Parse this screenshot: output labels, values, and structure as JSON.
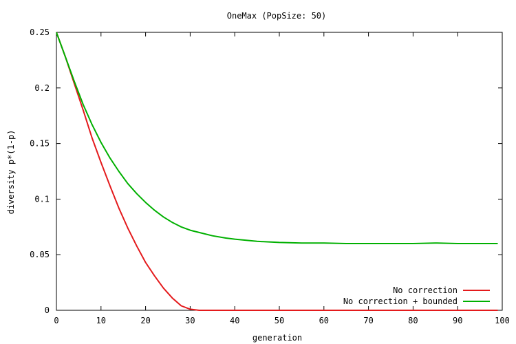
{
  "chart_data": {
    "type": "line",
    "title": "OneMax (PopSize: 50)",
    "xlabel": "generation",
    "ylabel": "diversity p*(1-p)",
    "xlim": [
      0,
      100
    ],
    "ylim": [
      0,
      0.25
    ],
    "xticks": [
      0,
      10,
      20,
      30,
      40,
      50,
      60,
      70,
      80,
      90,
      100
    ],
    "yticks": [
      0,
      0.05,
      0.1,
      0.15,
      0.2,
      0.25
    ],
    "xtick_labels": [
      "0",
      "10",
      "20",
      "30",
      "40",
      "50",
      "60",
      "70",
      "80",
      "90",
      "100"
    ],
    "ytick_labels": [
      "0",
      "0.05",
      "0.1",
      "0.15",
      "0.2",
      "0.25"
    ],
    "grid": false,
    "legend_position": "bottom-right",
    "series": [
      {
        "name": "No correction",
        "color": "#e41a1c",
        "x": [
          0,
          2,
          4,
          6,
          8,
          10,
          12,
          14,
          16,
          18,
          20,
          22,
          24,
          26,
          28,
          30,
          32,
          40,
          50,
          60,
          70,
          80,
          90,
          99
        ],
        "values": [
          0.25,
          0.228,
          0.204,
          0.18,
          0.155,
          0.133,
          0.112,
          0.092,
          0.074,
          0.058,
          0.043,
          0.031,
          0.02,
          0.011,
          0.004,
          0.001,
          0.0,
          0.0,
          0.0,
          0.0,
          0.0,
          0.0,
          0.0,
          0.0
        ]
      },
      {
        "name": "No correction + bounded",
        "color": "#00b000",
        "x": [
          0,
          2,
          4,
          6,
          8,
          10,
          12,
          14,
          16,
          18,
          20,
          22,
          24,
          26,
          28,
          30,
          32,
          35,
          38,
          40,
          45,
          50,
          55,
          60,
          65,
          70,
          75,
          80,
          85,
          90,
          95,
          99
        ],
        "values": [
          0.25,
          0.228,
          0.206,
          0.185,
          0.167,
          0.151,
          0.137,
          0.125,
          0.114,
          0.105,
          0.097,
          0.09,
          0.084,
          0.079,
          0.075,
          0.072,
          0.07,
          0.067,
          0.065,
          0.064,
          0.062,
          0.061,
          0.0605,
          0.0605,
          0.06,
          0.06,
          0.06,
          0.06,
          0.0605,
          0.06,
          0.06,
          0.06
        ]
      }
    ]
  }
}
